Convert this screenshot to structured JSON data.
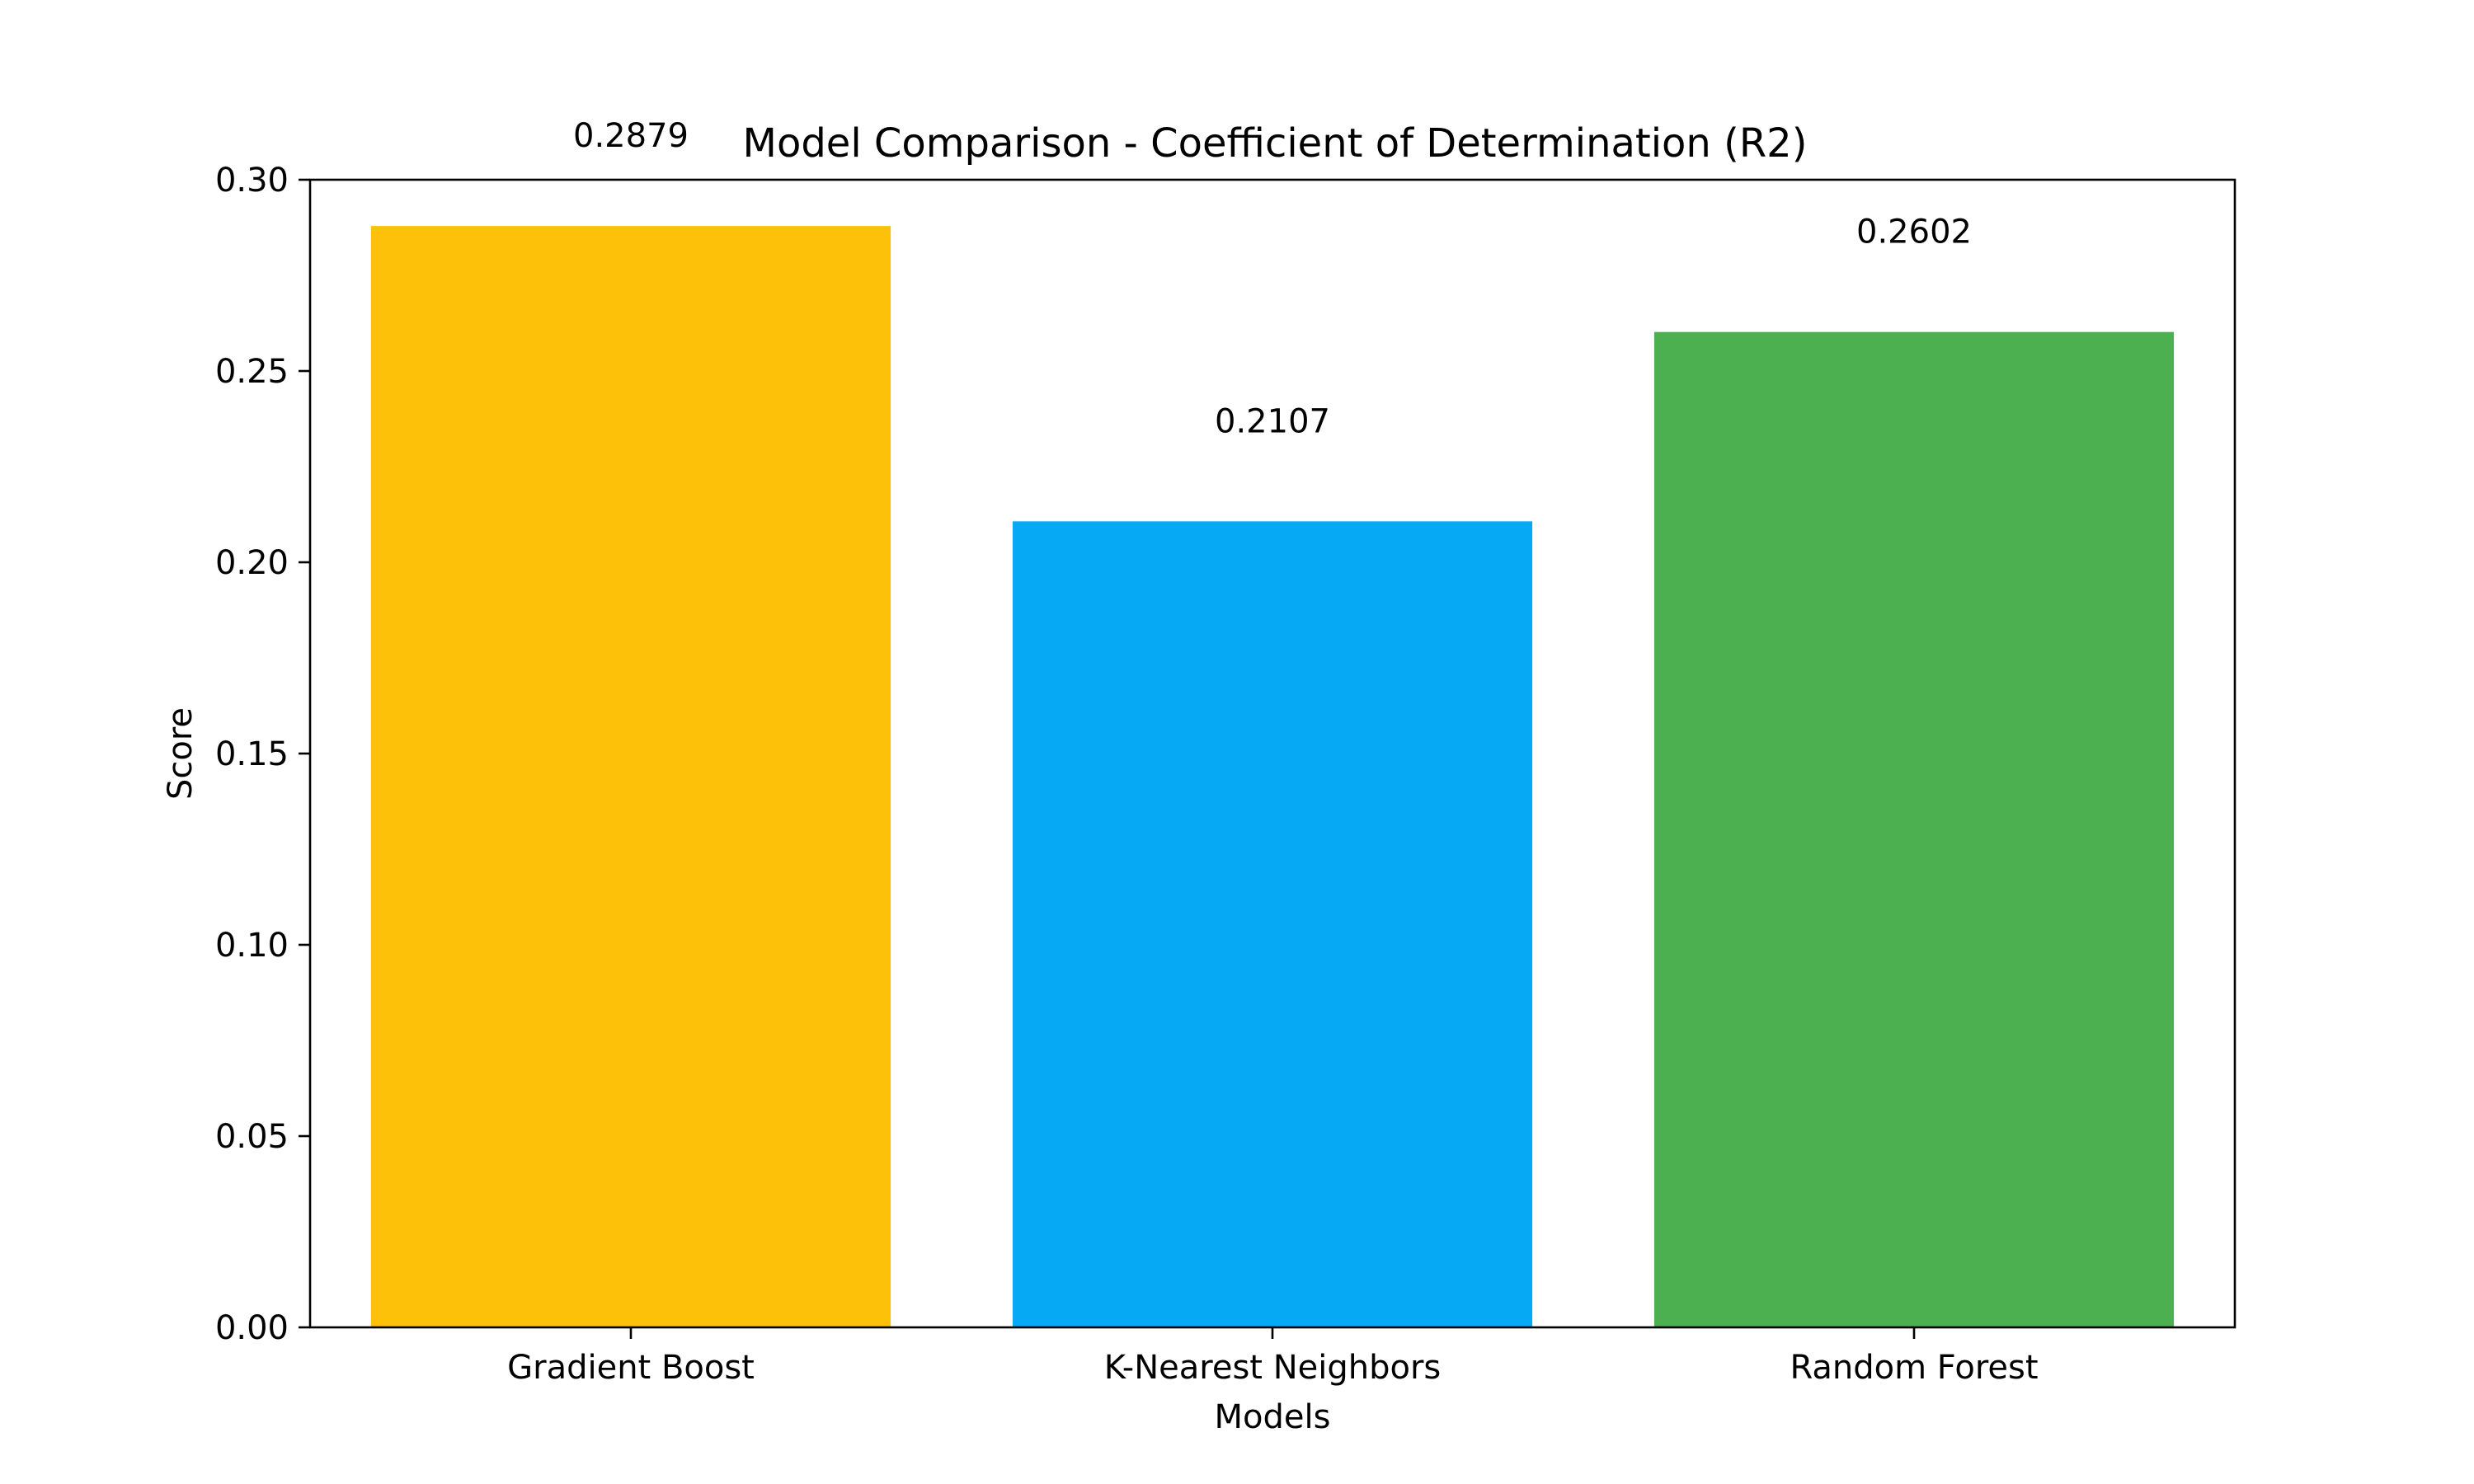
{
  "chart_data": {
    "type": "bar",
    "title": "Model Comparison - Coefficient of Determination (R2)",
    "xlabel": "Models",
    "ylabel": "Score",
    "categories": [
      "Gradient Boost",
      "K-Nearest Neighbors",
      "Random Forest"
    ],
    "values": [
      0.2879,
      0.2107,
      0.2602
    ],
    "value_labels": [
      "0.2879",
      "0.2107",
      "0.2602"
    ],
    "colors": [
      "#FCC108",
      "#05A9F4",
      "#4CAF50"
    ],
    "ylim": [
      0,
      0.3
    ],
    "yticks": [
      0.0,
      0.05,
      0.1,
      0.15,
      0.2,
      0.25,
      0.3
    ],
    "ytick_labels": [
      "0.00",
      "0.05",
      "0.10",
      "0.15",
      "0.20",
      "0.25",
      "0.30"
    ],
    "grid": false,
    "legend": false
  }
}
